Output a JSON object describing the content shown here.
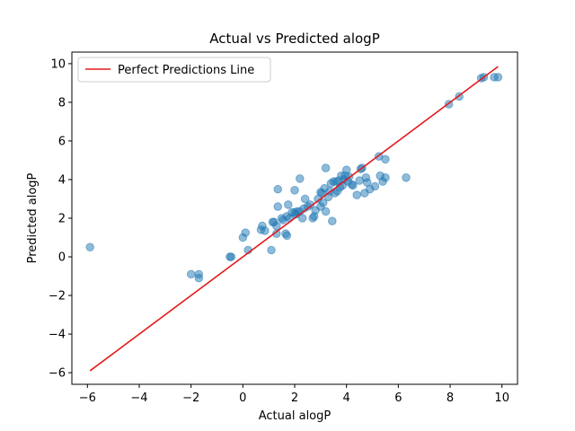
{
  "chart_data": {
    "type": "scatter",
    "title": "Actual vs Predicted alogP",
    "xlabel": "Actual alogP",
    "ylabel": "Predicted alogP",
    "xlim": [
      -6.6,
      10.6
    ],
    "ylim": [
      -6.6,
      10.6
    ],
    "xticks": [
      -6,
      -4,
      -2,
      0,
      2,
      4,
      6,
      8,
      10
    ],
    "yticks": [
      -6,
      -4,
      -2,
      0,
      2,
      4,
      6,
      8,
      10
    ],
    "grid": false,
    "legend": {
      "placement": "top-left",
      "entries": [
        "Perfect Predictions Line"
      ]
    },
    "colors": {
      "points": "#1f77b4",
      "line": "#e41a1c"
    },
    "series": [
      {
        "kind": "scatter",
        "points": [
          [
            -5.9,
            0.5
          ],
          [
            -2.0,
            -0.9
          ],
          [
            -1.7,
            -0.9
          ],
          [
            -1.7,
            -1.1
          ],
          [
            -0.5,
            0.0
          ],
          [
            -0.45,
            0.0
          ],
          [
            0.0,
            1.0
          ],
          [
            0.1,
            1.25
          ],
          [
            0.2,
            0.35
          ],
          [
            0.7,
            1.4
          ],
          [
            0.75,
            1.6
          ],
          [
            0.85,
            1.35
          ],
          [
            1.1,
            0.35
          ],
          [
            1.15,
            1.8
          ],
          [
            1.2,
            1.8
          ],
          [
            1.3,
            1.2
          ],
          [
            1.3,
            1.6
          ],
          [
            1.35,
            2.6
          ],
          [
            1.35,
            3.5
          ],
          [
            1.5,
            2.0
          ],
          [
            1.55,
            1.9
          ],
          [
            1.65,
            1.2
          ],
          [
            1.7,
            1.1
          ],
          [
            1.7,
            2.1
          ],
          [
            1.75,
            2.7
          ],
          [
            1.8,
            2.0
          ],
          [
            1.9,
            2.3
          ],
          [
            2.0,
            2.3
          ],
          [
            2.0,
            3.45
          ],
          [
            2.05,
            2.2
          ],
          [
            2.1,
            2.35
          ],
          [
            2.2,
            2.35
          ],
          [
            2.2,
            4.05
          ],
          [
            2.3,
            2.0
          ],
          [
            2.35,
            2.5
          ],
          [
            2.4,
            3.0
          ],
          [
            2.5,
            2.6
          ],
          [
            2.6,
            2.7
          ],
          [
            2.7,
            2.0
          ],
          [
            2.75,
            2.1
          ],
          [
            2.8,
            2.4
          ],
          [
            2.9,
            3.0
          ],
          [
            3.0,
            2.6
          ],
          [
            3.0,
            3.35
          ],
          [
            3.05,
            3.3
          ],
          [
            3.1,
            2.8
          ],
          [
            3.15,
            3.55
          ],
          [
            3.2,
            2.35
          ],
          [
            3.2,
            4.6
          ],
          [
            3.3,
            3.1
          ],
          [
            3.35,
            3.4
          ],
          [
            3.4,
            3.8
          ],
          [
            3.45,
            1.85
          ],
          [
            3.5,
            3.9
          ],
          [
            3.55,
            3.3
          ],
          [
            3.6,
            3.9
          ],
          [
            3.65,
            3.4
          ],
          [
            3.7,
            3.95
          ],
          [
            3.75,
            3.6
          ],
          [
            3.8,
            4.2
          ],
          [
            3.85,
            3.7
          ],
          [
            3.9,
            4.0
          ],
          [
            3.95,
            4.2
          ],
          [
            4.0,
            4.5
          ],
          [
            4.05,
            3.9
          ],
          [
            4.1,
            4.15
          ],
          [
            4.2,
            3.75
          ],
          [
            4.25,
            3.7
          ],
          [
            4.4,
            3.2
          ],
          [
            4.5,
            3.95
          ],
          [
            4.55,
            4.55
          ],
          [
            4.6,
            4.6
          ],
          [
            4.7,
            3.3
          ],
          [
            4.75,
            4.1
          ],
          [
            4.8,
            3.85
          ],
          [
            4.9,
            3.5
          ],
          [
            5.1,
            3.65
          ],
          [
            5.25,
            5.2
          ],
          [
            5.3,
            4.2
          ],
          [
            5.4,
            3.9
          ],
          [
            5.5,
            4.1
          ],
          [
            5.5,
            5.05
          ],
          [
            6.3,
            4.1
          ],
          [
            7.95,
            7.9
          ],
          [
            8.35,
            8.3
          ],
          [
            9.2,
            9.25
          ],
          [
            9.3,
            9.3
          ],
          [
            9.7,
            9.3
          ],
          [
            9.85,
            9.3
          ]
        ]
      },
      {
        "kind": "line",
        "name": "Perfect Predictions Line",
        "points": [
          [
            -5.9,
            -5.9
          ],
          [
            9.85,
            9.85
          ]
        ]
      }
    ]
  }
}
